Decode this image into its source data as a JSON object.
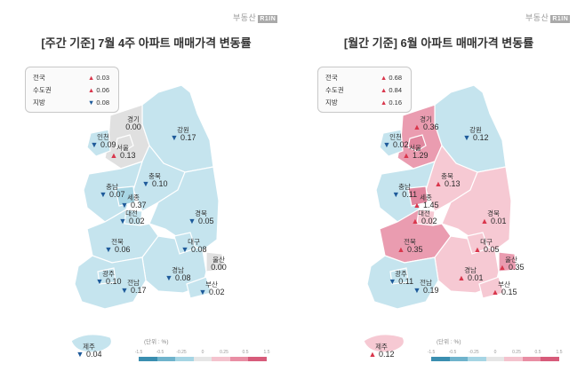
{
  "logo": {
    "text": "부동산",
    "badge": "R1IN"
  },
  "colors": {
    "up": "#d9364c",
    "down": "#1e5a9a",
    "land_light_blue": "#c5e4ee",
    "land_grey": "#e0e0e0",
    "land_pink": "#f6c9d3",
    "land_deep_pink": "#ea9cb0"
  },
  "left": {
    "title": "[주간 기준] 7월 4주 아파트 매매가격 변동률",
    "legend": [
      {
        "label": "전국",
        "dir": "up",
        "value": "0.03"
      },
      {
        "label": "수도권",
        "dir": "up",
        "value": "0.06"
      },
      {
        "label": "지방",
        "dir": "down",
        "value": "0.08"
      }
    ],
    "regions": [
      {
        "key": "gyeonggi",
        "name": "경기",
        "dir": "none",
        "value": "0.00",
        "fill": "#e0e0e0"
      },
      {
        "key": "incheon",
        "name": "인천",
        "dir": "down",
        "value": "0.09",
        "fill": "#c5e4ee"
      },
      {
        "key": "seoul",
        "name": "서울",
        "dir": "up",
        "value": "0.13",
        "fill": "#e0e0e0"
      },
      {
        "key": "gangwon",
        "name": "강원",
        "dir": "down",
        "value": "0.17",
        "fill": "#c5e4ee"
      },
      {
        "key": "chungbuk",
        "name": "충북",
        "dir": "down",
        "value": "0.10",
        "fill": "#c5e4ee"
      },
      {
        "key": "chungnam",
        "name": "충남",
        "dir": "down",
        "value": "0.07",
        "fill": "#c5e4ee"
      },
      {
        "key": "sejong",
        "name": "세종",
        "dir": "down",
        "value": "0.37",
        "fill": "#a8d6e4"
      },
      {
        "key": "daejeon",
        "name": "대전",
        "dir": "down",
        "value": "0.02",
        "fill": "#c5e4ee"
      },
      {
        "key": "gyeongbuk",
        "name": "경북",
        "dir": "down",
        "value": "0.05",
        "fill": "#c5e4ee"
      },
      {
        "key": "jeonbuk",
        "name": "전북",
        "dir": "down",
        "value": "0.06",
        "fill": "#c5e4ee"
      },
      {
        "key": "daegu",
        "name": "대구",
        "dir": "down",
        "value": "0.08",
        "fill": "#c5e4ee"
      },
      {
        "key": "ulsan",
        "name": "울산",
        "dir": "none",
        "value": "0.00",
        "fill": "#e0e0e0"
      },
      {
        "key": "gwangju",
        "name": "광주",
        "dir": "down",
        "value": "0.10",
        "fill": "#c5e4ee"
      },
      {
        "key": "jeonnam",
        "name": "전남",
        "dir": "down",
        "value": "0.17",
        "fill": "#c5e4ee"
      },
      {
        "key": "gyeongnam",
        "name": "경남",
        "dir": "down",
        "value": "0.08",
        "fill": "#c5e4ee"
      },
      {
        "key": "busan",
        "name": "부산",
        "dir": "down",
        "value": "0.02",
        "fill": "#c5e4ee"
      },
      {
        "key": "jeju",
        "name": "제주",
        "dir": "down",
        "value": "0.04",
        "fill": "#c5e4ee"
      }
    ],
    "unit": "(단위 : %)",
    "scale_ticks": [
      "-1.5",
      "-0.5",
      "-0.25",
      "0",
      "0.25",
      "0.5",
      "1.5"
    ]
  },
  "right": {
    "title": "[월간 기준] 6월 아파트 매매가격 변동률",
    "legend": [
      {
        "label": "전국",
        "dir": "up",
        "value": "0.68"
      },
      {
        "label": "수도권",
        "dir": "up",
        "value": "0.84"
      },
      {
        "label": "지방",
        "dir": "up",
        "value": "0.16"
      }
    ],
    "regions": [
      {
        "key": "gyeonggi",
        "name": "경기",
        "dir": "up",
        "value": "0.36",
        "fill": "#ea9cb0"
      },
      {
        "key": "incheon",
        "name": "인천",
        "dir": "down",
        "value": "0.02",
        "fill": "#c5e4ee"
      },
      {
        "key": "seoul",
        "name": "서울",
        "dir": "up",
        "value": "1.29",
        "fill": "#e0869e"
      },
      {
        "key": "gangwon",
        "name": "강원",
        "dir": "down",
        "value": "0.12",
        "fill": "#c5e4ee"
      },
      {
        "key": "chungbuk",
        "name": "충북",
        "dir": "up",
        "value": "0.13",
        "fill": "#f6c9d3"
      },
      {
        "key": "chungnam",
        "name": "충남",
        "dir": "down",
        "value": "0.11",
        "fill": "#c5e4ee"
      },
      {
        "key": "sejong",
        "name": "세종",
        "dir": "up",
        "value": "1.45",
        "fill": "#e0869e"
      },
      {
        "key": "daejeon",
        "name": "대전",
        "dir": "up",
        "value": "0.02",
        "fill": "#f6c9d3"
      },
      {
        "key": "gyeongbuk",
        "name": "경북",
        "dir": "up",
        "value": "0.01",
        "fill": "#f6c9d3"
      },
      {
        "key": "jeonbuk",
        "name": "전북",
        "dir": "up",
        "value": "0.35",
        "fill": "#ea9cb0"
      },
      {
        "key": "daegu",
        "name": "대구",
        "dir": "up",
        "value": "0.05",
        "fill": "#f6c9d3"
      },
      {
        "key": "ulsan",
        "name": "울산",
        "dir": "up",
        "value": "0.35",
        "fill": "#ea9cb0"
      },
      {
        "key": "gwangju",
        "name": "광주",
        "dir": "down",
        "value": "0.11",
        "fill": "#c5e4ee"
      },
      {
        "key": "jeonnam",
        "name": "전남",
        "dir": "down",
        "value": "0.19",
        "fill": "#c5e4ee"
      },
      {
        "key": "gyeongnam",
        "name": "경남",
        "dir": "up",
        "value": "0.01",
        "fill": "#f6c9d3"
      },
      {
        "key": "busan",
        "name": "부산",
        "dir": "up",
        "value": "0.15",
        "fill": "#f6c9d3"
      },
      {
        "key": "jeju",
        "name": "제주",
        "dir": "up",
        "value": "0.12",
        "fill": "#f6c9d3"
      }
    ],
    "unit": "(단위 : %)",
    "scale_ticks": [
      "-1.5",
      "-0.5",
      "-0.25",
      "0",
      "0.25",
      "0.5",
      "1.5"
    ]
  }
}
